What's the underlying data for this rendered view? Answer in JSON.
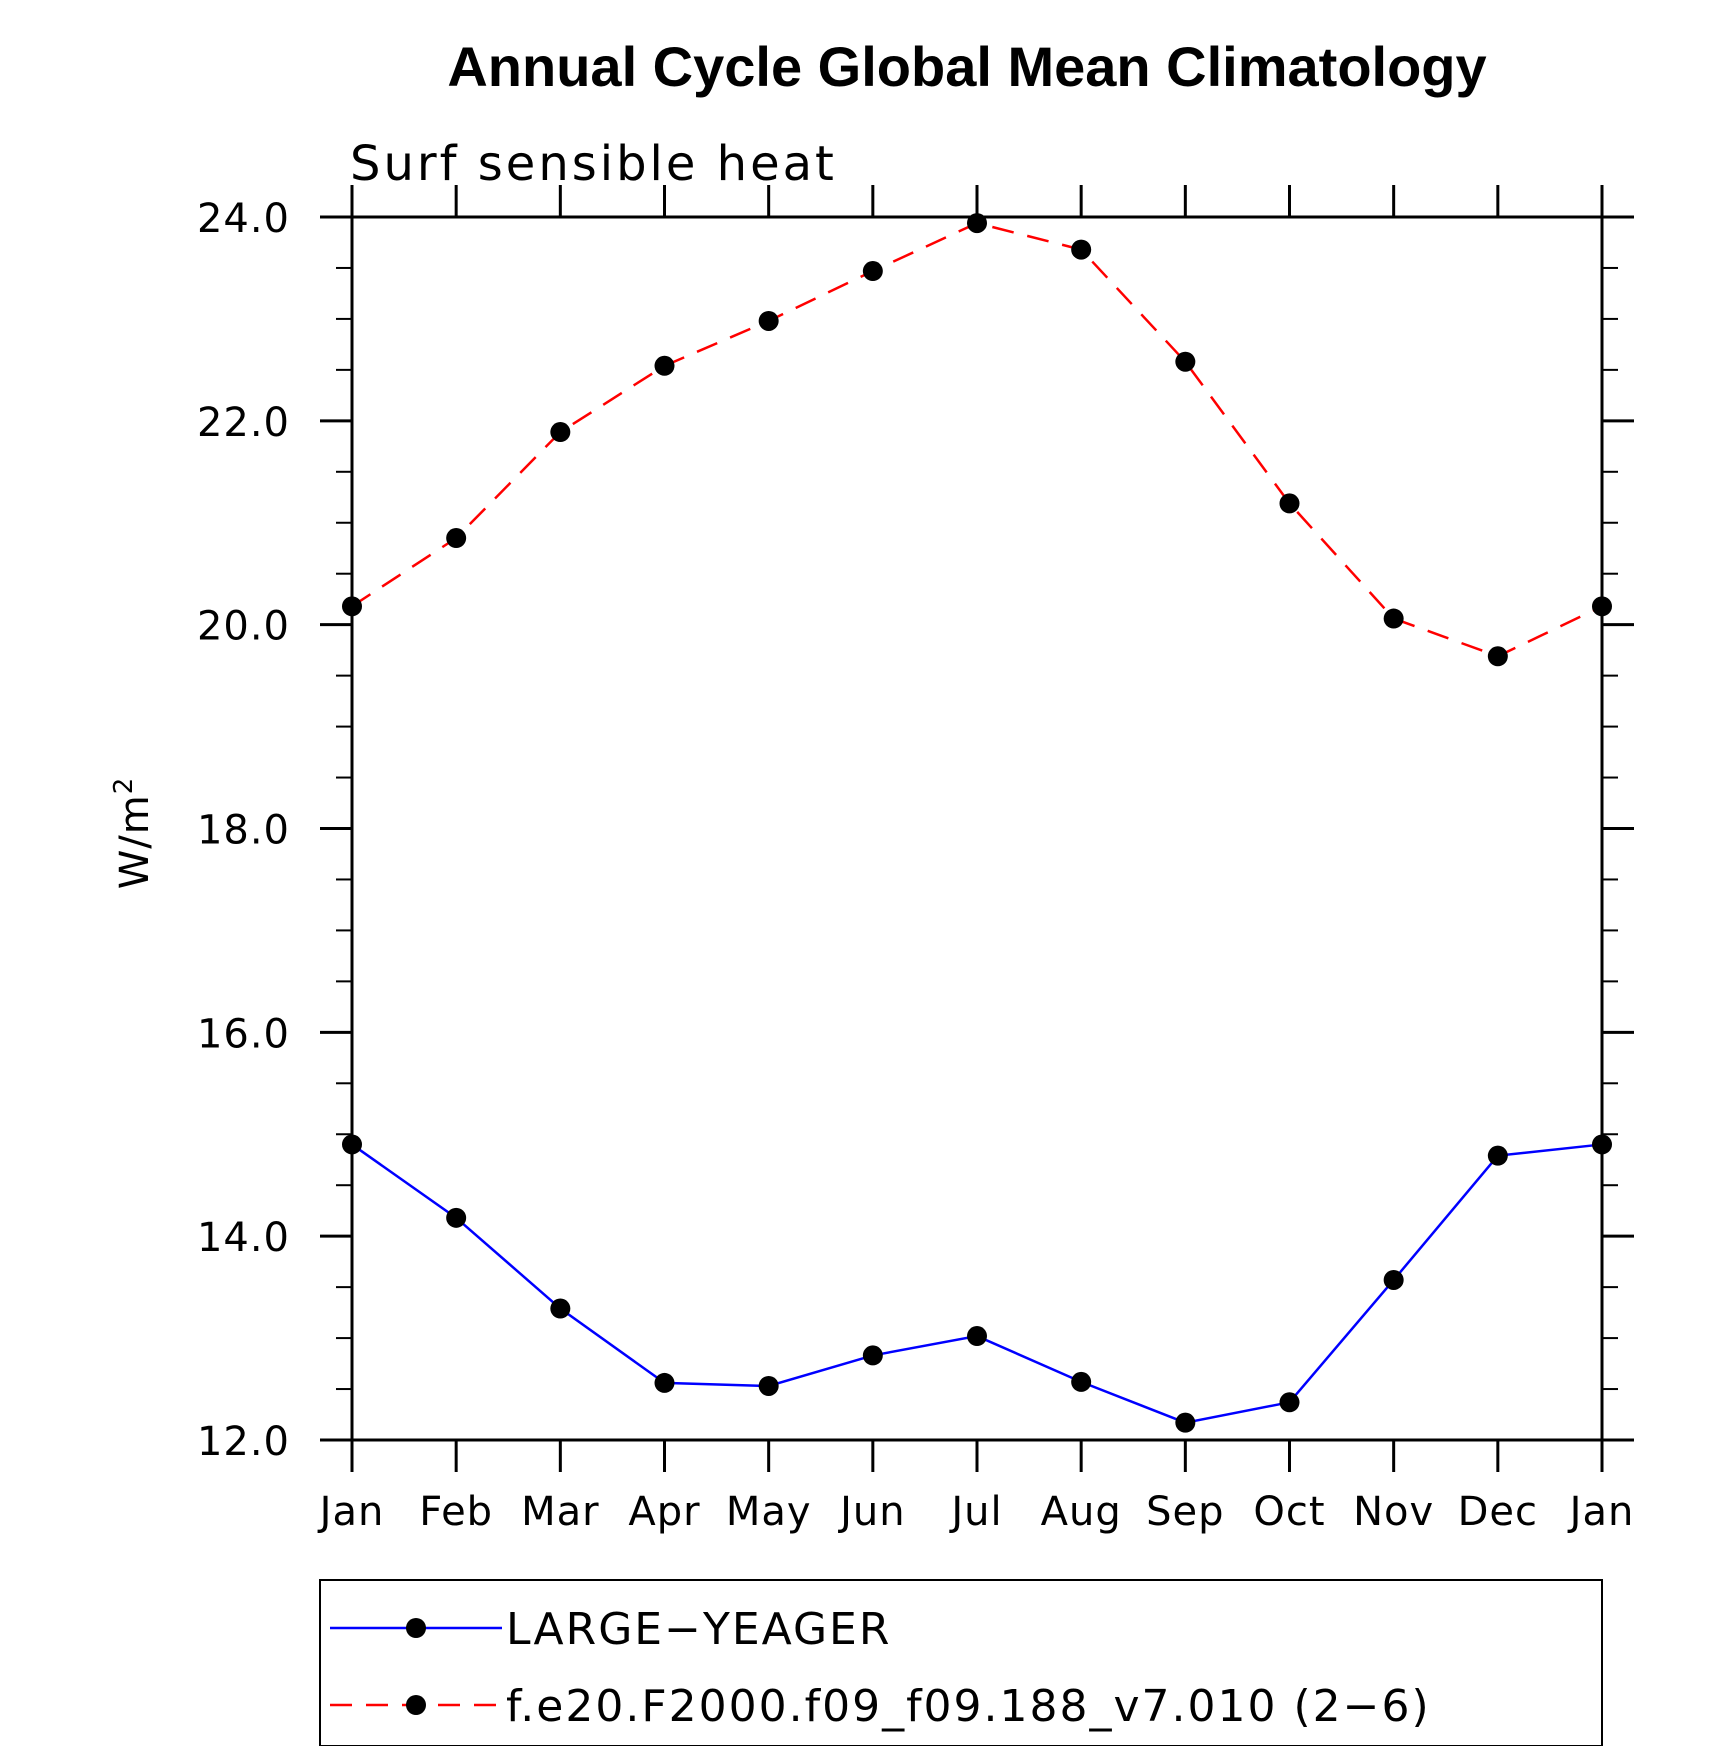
{
  "chart_data": {
    "type": "line",
    "title": "Annual Cycle Global Mean Climatology",
    "subtitle": "Surf sensible heat",
    "ylabel": "W/m",
    "ylabel_superscript": "2",
    "xlabel": "",
    "ylim": [
      12.0,
      24.0
    ],
    "yticks": [
      "12.0",
      "14.0",
      "16.0",
      "18.0",
      "20.0",
      "22.0",
      "24.0"
    ],
    "categories": [
      "Jan",
      "Feb",
      "Mar",
      "Apr",
      "May",
      "Jun",
      "Jul",
      "Aug",
      "Sep",
      "Oct",
      "Nov",
      "Dec",
      "Jan"
    ],
    "grid": false,
    "legend_position": "bottom",
    "series": [
      {
        "name": "LARGE−YEAGER",
        "color": "#0000ff",
        "line_style": "solid",
        "marker": "filled-circle",
        "values": [
          14.9,
          14.18,
          13.29,
          12.56,
          12.53,
          12.83,
          13.02,
          12.57,
          12.17,
          12.37,
          13.57,
          14.79,
          14.9
        ]
      },
      {
        "name": "f.e20.F2000.f09_f09.188_v7.010 (2−6)",
        "color": "#ff0000",
        "line_style": "dashed",
        "marker": "filled-circle",
        "values": [
          20.18,
          20.85,
          21.89,
          22.54,
          22.98,
          23.47,
          23.94,
          23.68,
          22.58,
          21.19,
          20.06,
          19.69,
          20.18
        ]
      }
    ]
  }
}
